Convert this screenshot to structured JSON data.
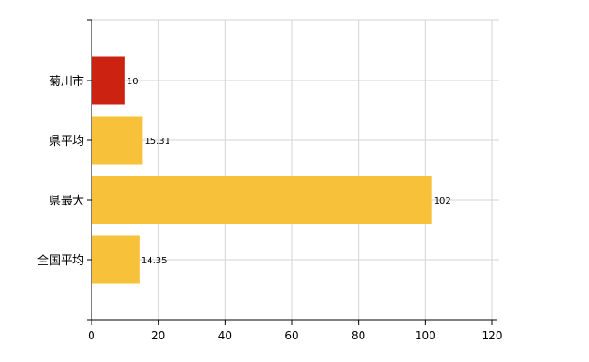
{
  "chart_data": {
    "type": "bar",
    "orientation": "horizontal",
    "categories": [
      "菊川市",
      "県平均",
      "県最大",
      "全国平均"
    ],
    "values": [
      10,
      15.31,
      102,
      14.35
    ],
    "value_labels": [
      "10",
      "15.31",
      "102",
      "14.35"
    ],
    "bar_colors": [
      "#cc2211",
      "#f7c13a",
      "#f7c13a",
      "#f7c13a"
    ],
    "xlim": [
      0,
      120
    ],
    "xticks": [
      0,
      20,
      40,
      60,
      80,
      100,
      120
    ],
    "xtick_labels": [
      "0",
      "20",
      "40",
      "60",
      "80",
      "100",
      "120"
    ],
    "grid": true,
    "legend": "none"
  }
}
